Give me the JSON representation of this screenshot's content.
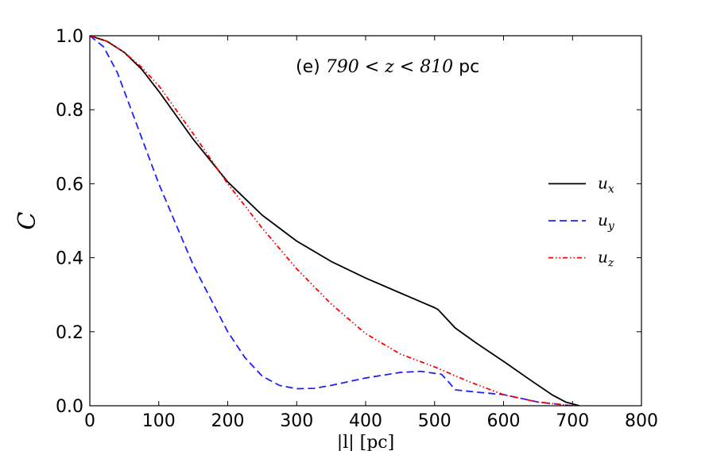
{
  "chart_data": {
    "type": "line",
    "title": "",
    "annotation": {
      "prefix": "(e) ",
      "math": "790 < z < 810",
      "suffix": " pc"
    },
    "xlabel": "|l| [pc]",
    "ylabel": "C",
    "xlim": [
      0,
      800
    ],
    "ylim": [
      0.0,
      1.0
    ],
    "xticks": [
      0,
      100,
      200,
      300,
      400,
      500,
      600,
      700,
      800
    ],
    "xtick_labels": [
      "0",
      "100",
      "200",
      "300",
      "400",
      "500",
      "600",
      "700",
      "800"
    ],
    "yticks": [
      0.0,
      0.2,
      0.4,
      0.6,
      0.8,
      1.0
    ],
    "ytick_labels": [
      "0.0",
      "0.2",
      "0.4",
      "0.6",
      "0.8",
      "1.0"
    ],
    "grid": false,
    "legend_position": "center-right",
    "series": [
      {
        "name": "u_x",
        "label_main": "u",
        "label_sub": "x",
        "color": "#000000",
        "style": "solid",
        "x": [
          0,
          25,
          50,
          75,
          100,
          150,
          200,
          250,
          300,
          350,
          400,
          450,
          500,
          505,
          510,
          530,
          560,
          600,
          640,
          670,
          690,
          710
        ],
        "y": [
          1.0,
          0.985,
          0.955,
          0.91,
          0.85,
          0.72,
          0.605,
          0.515,
          0.445,
          0.39,
          0.345,
          0.305,
          0.265,
          0.26,
          0.25,
          0.21,
          0.17,
          0.12,
          0.068,
          0.03,
          0.01,
          0.0
        ]
      },
      {
        "name": "u_y",
        "label_main": "u",
        "label_sub": "y",
        "color": "#1f1fff",
        "style": "dashed",
        "x": [
          0,
          20,
          40,
          60,
          80,
          100,
          125,
          150,
          175,
          200,
          225,
          250,
          275,
          300,
          325,
          350,
          400,
          450,
          480,
          510,
          520,
          530,
          560,
          600,
          650,
          700
        ],
        "y": [
          1.0,
          0.97,
          0.9,
          0.8,
          0.7,
          0.6,
          0.49,
          0.38,
          0.29,
          0.2,
          0.13,
          0.08,
          0.055,
          0.046,
          0.047,
          0.055,
          0.075,
          0.09,
          0.093,
          0.085,
          0.065,
          0.043,
          0.037,
          0.03,
          0.01,
          0.0
        ]
      },
      {
        "name": "u_z",
        "label_main": "u",
        "label_sub": "z",
        "color": "#ff0000",
        "style": "dash-dot-dot",
        "x": [
          0,
          25,
          50,
          75,
          100,
          150,
          200,
          250,
          300,
          350,
          400,
          450,
          500,
          550,
          600,
          650,
          700
        ],
        "y": [
          1.0,
          0.985,
          0.955,
          0.915,
          0.865,
          0.735,
          0.6,
          0.48,
          0.37,
          0.275,
          0.195,
          0.14,
          0.105,
          0.065,
          0.03,
          0.01,
          0.0
        ]
      }
    ]
  }
}
